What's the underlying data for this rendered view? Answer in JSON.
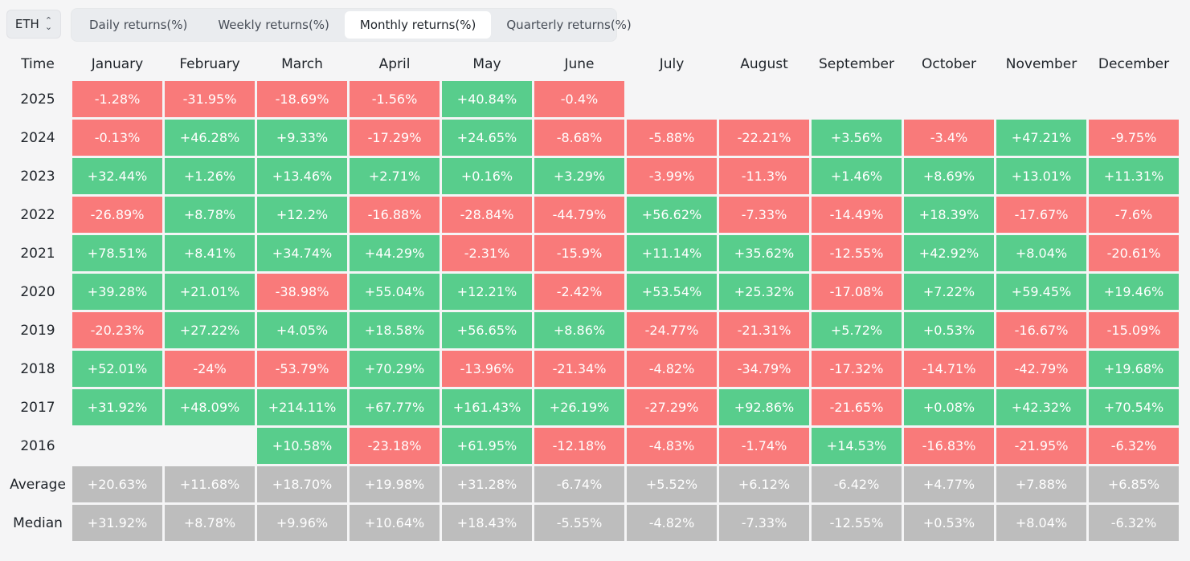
{
  "asset": {
    "label": "ETH"
  },
  "tabs": [
    {
      "label": "Daily returns(%)",
      "active": false
    },
    {
      "label": "Weekly returns(%)",
      "active": false
    },
    {
      "label": "Monthly returns(%)",
      "active": true
    },
    {
      "label": "Quarterly returns(%)",
      "active": false
    }
  ],
  "colors": {
    "positive": "#58cd8c",
    "negative": "#f97a7a",
    "stat": "#bdbdbd"
  },
  "table": {
    "header_label": "Time",
    "columns": [
      "January",
      "February",
      "March",
      "April",
      "May",
      "June",
      "July",
      "August",
      "September",
      "October",
      "November",
      "December"
    ],
    "rows": [
      {
        "label": "2025",
        "values": [
          "-1.28%",
          "-31.95%",
          "-18.69%",
          "-1.56%",
          "+40.84%",
          "-0.4%",
          "",
          "",
          "",
          "",
          "",
          ""
        ]
      },
      {
        "label": "2024",
        "values": [
          "-0.13%",
          "+46.28%",
          "+9.33%",
          "-17.29%",
          "+24.65%",
          "-8.68%",
          "-5.88%",
          "-22.21%",
          "+3.56%",
          "-3.4%",
          "+47.21%",
          "-9.75%"
        ]
      },
      {
        "label": "2023",
        "values": [
          "+32.44%",
          "+1.26%",
          "+13.46%",
          "+2.71%",
          "+0.16%",
          "+3.29%",
          "-3.99%",
          "-11.3%",
          "+1.46%",
          "+8.69%",
          "+13.01%",
          "+11.31%"
        ]
      },
      {
        "label": "2022",
        "values": [
          "-26.89%",
          "+8.78%",
          "+12.2%",
          "-16.88%",
          "-28.84%",
          "-44.79%",
          "+56.62%",
          "-7.33%",
          "-14.49%",
          "+18.39%",
          "-17.67%",
          "-7.6%"
        ]
      },
      {
        "label": "2021",
        "values": [
          "+78.51%",
          "+8.41%",
          "+34.74%",
          "+44.29%",
          "-2.31%",
          "-15.9%",
          "+11.14%",
          "+35.62%",
          "-12.55%",
          "+42.92%",
          "+8.04%",
          "-20.61%"
        ]
      },
      {
        "label": "2020",
        "values": [
          "+39.28%",
          "+21.01%",
          "-38.98%",
          "+55.04%",
          "+12.21%",
          "-2.42%",
          "+53.54%",
          "+25.32%",
          "-17.08%",
          "+7.22%",
          "+59.45%",
          "+19.46%"
        ]
      },
      {
        "label": "2019",
        "values": [
          "-20.23%",
          "+27.22%",
          "+4.05%",
          "+18.58%",
          "+56.65%",
          "+8.86%",
          "-24.77%",
          "-21.31%",
          "+5.72%",
          "+0.53%",
          "-16.67%",
          "-15.09%"
        ]
      },
      {
        "label": "2018",
        "values": [
          "+52.01%",
          "-24%",
          "-53.79%",
          "+70.29%",
          "-13.96%",
          "-21.34%",
          "-4.82%",
          "-34.79%",
          "-17.32%",
          "-14.71%",
          "-42.79%",
          "+19.68%"
        ]
      },
      {
        "label": "2017",
        "values": [
          "+31.92%",
          "+48.09%",
          "+214.11%",
          "+67.77%",
          "+161.43%",
          "+26.19%",
          "-27.29%",
          "+92.86%",
          "-21.65%",
          "+0.08%",
          "+42.32%",
          "+70.54%"
        ]
      },
      {
        "label": "2016",
        "values": [
          "",
          "",
          "+10.58%",
          "-23.18%",
          "+61.95%",
          "-12.18%",
          "-4.83%",
          "-1.74%",
          "+14.53%",
          "-16.83%",
          "-21.95%",
          "-6.32%"
        ]
      }
    ],
    "stats": [
      {
        "label": "Average",
        "values": [
          "+20.63%",
          "+11.68%",
          "+18.70%",
          "+19.98%",
          "+31.28%",
          "-6.74%",
          "+5.52%",
          "+6.12%",
          "-6.42%",
          "+4.77%",
          "+7.88%",
          "+6.85%"
        ]
      },
      {
        "label": "Median",
        "values": [
          "+31.92%",
          "+8.78%",
          "+9.96%",
          "+10.64%",
          "+18.43%",
          "-5.55%",
          "-4.82%",
          "-7.33%",
          "-12.55%",
          "+0.53%",
          "+8.04%",
          "-6.32%"
        ]
      }
    ]
  }
}
